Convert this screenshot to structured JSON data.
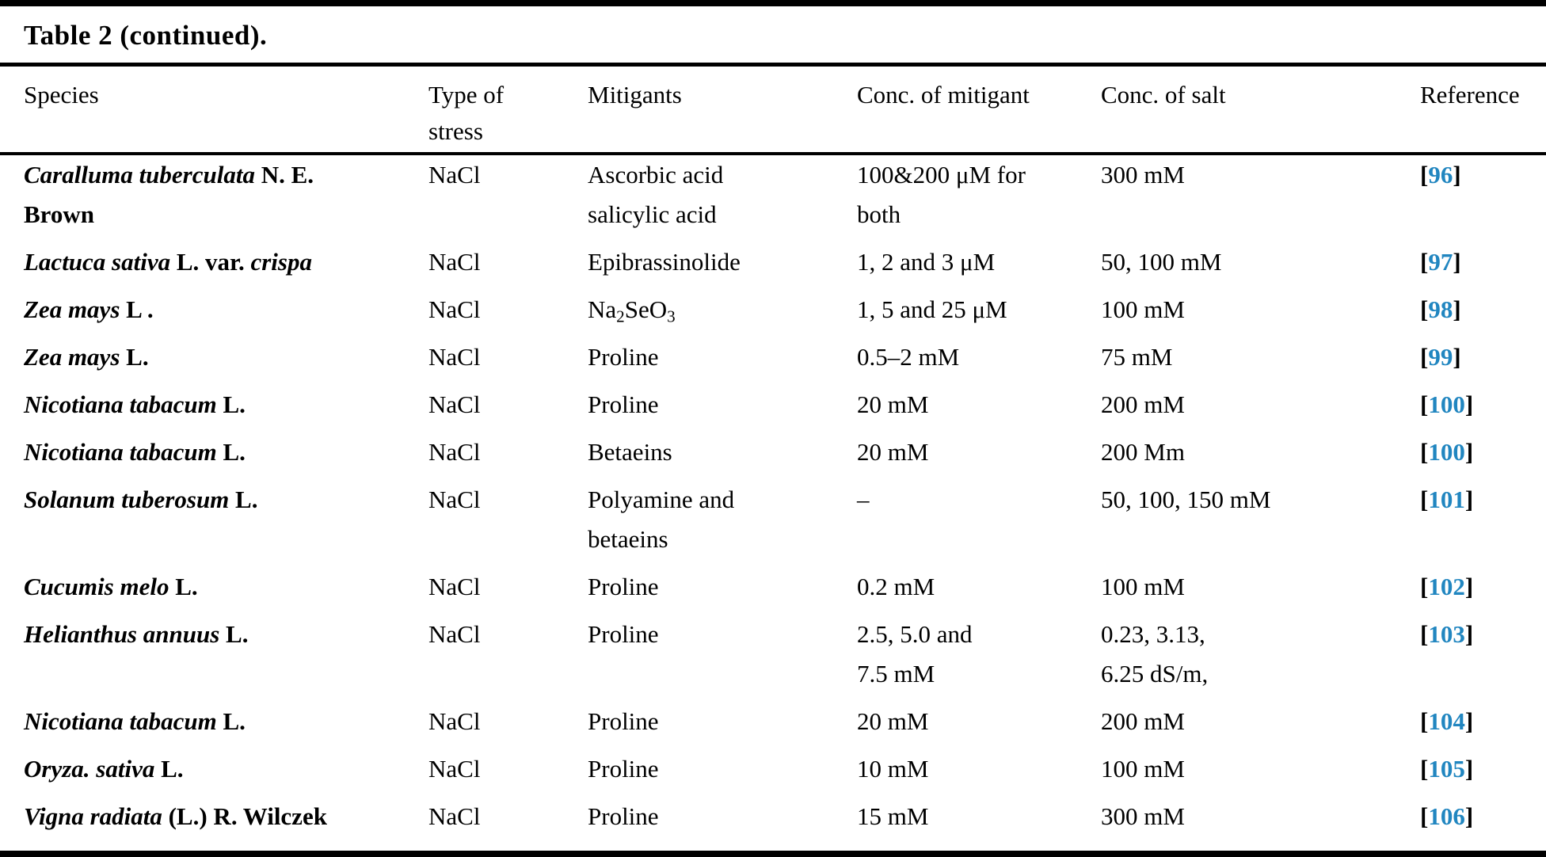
{
  "title": "Table 2 (continued).",
  "colors": {
    "text": "#000000",
    "background": "#ffffff",
    "citation_blue": "#2186c0"
  },
  "table": {
    "columns": [
      "Species",
      "Type of\nstress",
      "Mitigants",
      "Conc. of mitigant",
      "Conc. of salt",
      "Reference"
    ],
    "rows": [
      {
        "species": [
          {
            "t": "Caralluma tuberculata",
            "s": "bi"
          },
          {
            "t": " N. E.\nBrown",
            "s": "b"
          }
        ],
        "stress": "NaCl",
        "mitigant": [
          {
            "t": "Ascorbic acid\nsalicylic acid"
          }
        ],
        "conc_mitigant": [
          {
            "t": "100&200 μM for\nboth"
          }
        ],
        "conc_salt": [
          {
            "t": "300 mM"
          }
        ],
        "ref": "96"
      },
      {
        "species": [
          {
            "t": "Lactuca sativa",
            "s": "bi"
          },
          {
            "t": " L. var. ",
            "s": "b"
          },
          {
            "t": "crispa",
            "s": "bi"
          }
        ],
        "stress": "NaCl",
        "mitigant": [
          {
            "t": "Epibrassinolide"
          }
        ],
        "conc_mitigant": [
          {
            "t": "1, 2 and 3 μM"
          }
        ],
        "conc_salt": [
          {
            "t": "50, 100 mM"
          }
        ],
        "ref": "97"
      },
      {
        "species": [
          {
            "t": "Zea mays",
            "s": "bi"
          },
          {
            "t": " L .",
            "s": "b"
          }
        ],
        "stress": "NaCl",
        "mitigant": [
          {
            "t": "Na"
          },
          {
            "t": "2",
            "sub": true
          },
          {
            "t": "SeO"
          },
          {
            "t": "3",
            "sub": true
          }
        ],
        "conc_mitigant": [
          {
            "t": "1, 5 and 25 μM"
          }
        ],
        "conc_salt": [
          {
            "t": "100 mM"
          }
        ],
        "ref": "98"
      },
      {
        "species": [
          {
            "t": "Zea mays",
            "s": "bi"
          },
          {
            "t": " L.",
            "s": "b"
          }
        ],
        "stress": "NaCl",
        "mitigant": [
          {
            "t": "Proline"
          }
        ],
        "conc_mitigant": [
          {
            "t": "0.5–2 mM"
          }
        ],
        "conc_salt": [
          {
            "t": "75 mM"
          }
        ],
        "ref": "99"
      },
      {
        "species": [
          {
            "t": "Nicotiana tabacum",
            "s": "bi"
          },
          {
            "t": " L.",
            "s": "b"
          }
        ],
        "stress": "NaCl",
        "mitigant": [
          {
            "t": "Proline"
          }
        ],
        "conc_mitigant": [
          {
            "t": "20 mM"
          }
        ],
        "conc_salt": [
          {
            "t": "200 mM"
          }
        ],
        "ref": "100"
      },
      {
        "species": [
          {
            "t": "Nicotiana tabacum",
            "s": "bi"
          },
          {
            "t": " L.",
            "s": "b"
          }
        ],
        "stress": "NaCl",
        "mitigant": [
          {
            "t": "Betaeins"
          }
        ],
        "conc_mitigant": [
          {
            "t": "20 mM"
          }
        ],
        "conc_salt": [
          {
            "t": "200 Mm"
          }
        ],
        "ref": "100"
      },
      {
        "species": [
          {
            "t": "Solanum tuberosum",
            "s": "bi"
          },
          {
            "t": " L.",
            "s": "b"
          }
        ],
        "stress": "NaCl",
        "mitigant": [
          {
            "t": "Polyamine and\nbetaeins"
          }
        ],
        "conc_mitigant": [
          {
            "t": "–"
          }
        ],
        "conc_salt": [
          {
            "t": "50, 100, 150 mM"
          }
        ],
        "ref": "101"
      },
      {
        "species": [
          {
            "t": "Cucumis melo",
            "s": "bi"
          },
          {
            "t": " L.",
            "s": "b"
          }
        ],
        "stress": "NaCl",
        "mitigant": [
          {
            "t": "Proline"
          }
        ],
        "conc_mitigant": [
          {
            "t": "0.2 mM"
          }
        ],
        "conc_salt": [
          {
            "t": "100 mM"
          }
        ],
        "ref": "102"
      },
      {
        "species": [
          {
            "t": "Helianthus annuus",
            "s": "bi"
          },
          {
            "t": " L.",
            "s": "b"
          }
        ],
        "stress": "NaCl",
        "mitigant": [
          {
            "t": "Proline"
          }
        ],
        "conc_mitigant": [
          {
            "t": "2.5, 5.0 and\n7.5 mM"
          }
        ],
        "conc_salt": [
          {
            "t": "0.23, 3.13,\n6.25 dS/m,"
          }
        ],
        "ref": "103"
      },
      {
        "species": [
          {
            "t": "Nicotiana tabacum",
            "s": "bi"
          },
          {
            "t": " L.",
            "s": "b"
          }
        ],
        "stress": "NaCl",
        "mitigant": [
          {
            "t": "Proline"
          }
        ],
        "conc_mitigant": [
          {
            "t": "20 mM"
          }
        ],
        "conc_salt": [
          {
            "t": "200 mM"
          }
        ],
        "ref": "104"
      },
      {
        "species": [
          {
            "t": "Oryza. sativa",
            "s": "bi"
          },
          {
            "t": " L.",
            "s": "b"
          }
        ],
        "stress": "NaCl",
        "mitigant": [
          {
            "t": "Proline"
          }
        ],
        "conc_mitigant": [
          {
            "t": "10 mM"
          }
        ],
        "conc_salt": [
          {
            "t": "100 mM"
          }
        ],
        "ref": "105"
      },
      {
        "species": [
          {
            "t": "Vigna radiata",
            "s": "bi"
          },
          {
            "t": " (L.) R. Wilczek",
            "s": "b"
          }
        ],
        "stress": "NaCl",
        "mitigant": [
          {
            "t": "Proline"
          }
        ],
        "conc_mitigant": [
          {
            "t": "15 mM"
          }
        ],
        "conc_salt": [
          {
            "t": "300 mM"
          }
        ],
        "ref": "106"
      }
    ]
  }
}
